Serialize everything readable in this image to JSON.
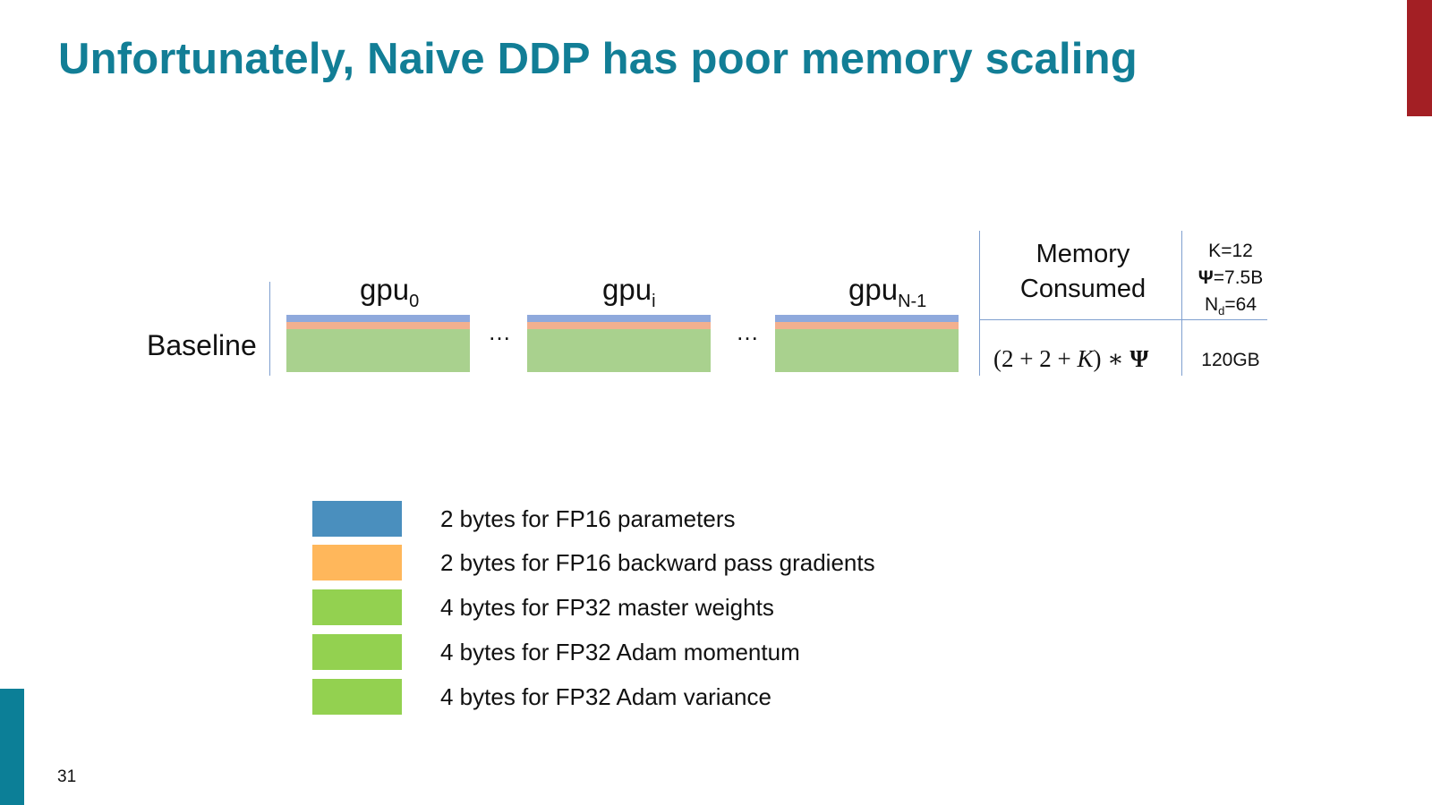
{
  "slide": {
    "title": "Unfortunately, Naive DDP has poor memory scaling",
    "page_number": "31",
    "colors": {
      "title": "#127e96",
      "accent_top": "#a31f24",
      "accent_bottom": "#0c7f97"
    }
  },
  "diagram": {
    "row_label": "Baseline",
    "gpus": [
      {
        "name": "gpu",
        "subscript": "0"
      },
      {
        "name": "gpu",
        "subscript": "i"
      },
      {
        "name": "gpu",
        "subscript": "N-1"
      }
    ],
    "ellipsis": "…",
    "segment_colors": {
      "params": "#8fa9dc",
      "grads": "#f3b08f",
      "optimizer": "#a9d18e"
    },
    "memory_table": {
      "header": "Memory Consumed",
      "formula": {
        "open": "(2 + 2 + ",
        "var": "K",
        "close": ") ∗ ",
        "sym": "Ψ"
      },
      "value": "120GB",
      "params": [
        {
          "label": "K",
          "rest": "=12"
        },
        {
          "label": "Ψ",
          "rest": "=7.5B"
        },
        {
          "label": "N",
          "sub": "d",
          "rest": "=64"
        }
      ]
    }
  },
  "legend": [
    {
      "text": "2 bytes for FP16 parameters",
      "color": "#4a8fbe"
    },
    {
      "text": "2 bytes for FP16 backward pass gradients",
      "color": "#ffb75b"
    },
    {
      "text": "4 bytes for FP32 master weights",
      "color": "#93d150"
    },
    {
      "text": "4 bytes for FP32 Adam momentum",
      "color": "#93d150"
    },
    {
      "text": "4 bytes for FP32 Adam variance",
      "color": "#93d150"
    }
  ]
}
